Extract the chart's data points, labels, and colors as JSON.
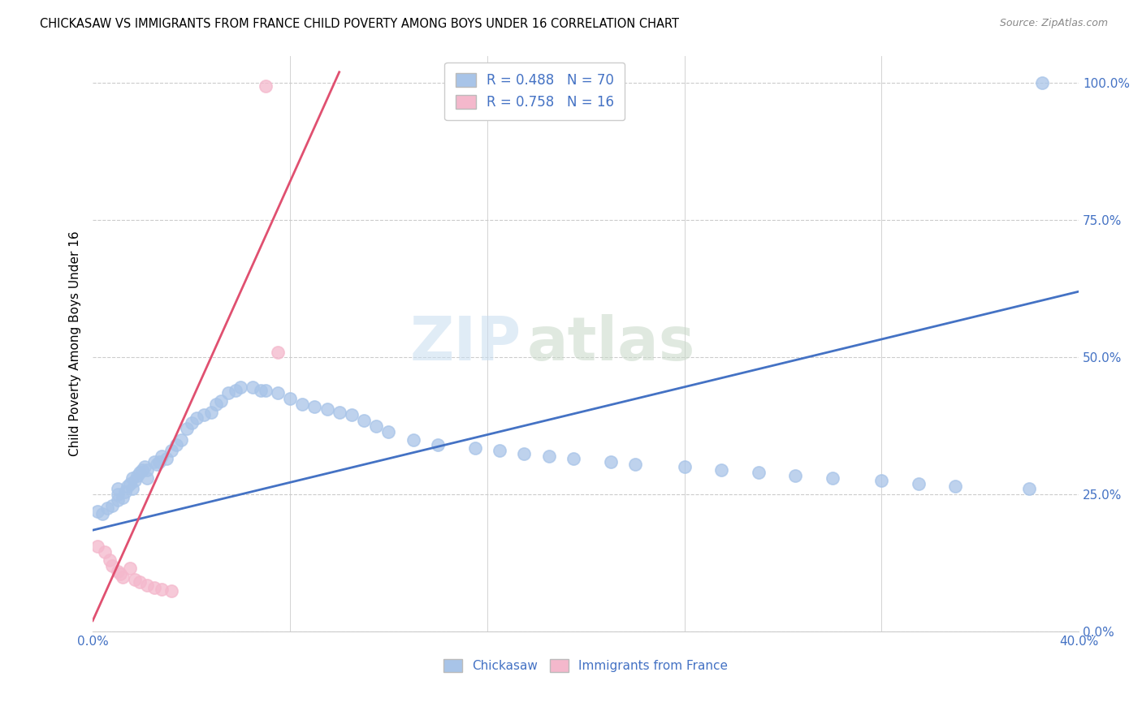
{
  "title": "CHICKASAW VS IMMIGRANTS FROM FRANCE CHILD POVERTY AMONG BOYS UNDER 16 CORRELATION CHART",
  "source": "Source: ZipAtlas.com",
  "ylabel": "Child Poverty Among Boys Under 16",
  "xlim": [
    0.0,
    0.4
  ],
  "ylim": [
    0.0,
    1.05
  ],
  "yticks": [
    0.0,
    0.25,
    0.5,
    0.75,
    1.0
  ],
  "ytick_labels": [
    "0.0%",
    "25.0%",
    "50.0%",
    "75.0%",
    "100.0%"
  ],
  "xtick_positions": [
    0.0,
    0.08,
    0.16,
    0.24,
    0.32,
    0.4
  ],
  "xtick_labels": [
    "0.0%",
    "",
    "",
    "",
    "",
    "40.0%"
  ],
  "watermark_zip": "ZIP",
  "watermark_atlas": "atlas",
  "scatter_blue_color": "#a8c4e8",
  "scatter_pink_color": "#f4b8cc",
  "line_blue_color": "#4472c4",
  "line_pink_color": "#e05070",
  "text_color": "#4472c4",
  "legend1_r1": "R = 0.488",
  "legend1_n1": "N = 70",
  "legend1_r2": "R = 0.758",
  "legend1_n2": "N = 16",
  "chickasaw_x": [
    0.002,
    0.004,
    0.006,
    0.008,
    0.01,
    0.01,
    0.01,
    0.012,
    0.013,
    0.014,
    0.015,
    0.016,
    0.016,
    0.017,
    0.018,
    0.019,
    0.02,
    0.021,
    0.022,
    0.022,
    0.025,
    0.026,
    0.027,
    0.028,
    0.03,
    0.032,
    0.034,
    0.036,
    0.038,
    0.04,
    0.042,
    0.045,
    0.048,
    0.05,
    0.052,
    0.055,
    0.058,
    0.06,
    0.065,
    0.068,
    0.07,
    0.075,
    0.08,
    0.085,
    0.09,
    0.095,
    0.1,
    0.105,
    0.11,
    0.115,
    0.12,
    0.13,
    0.14,
    0.155,
    0.165,
    0.175,
    0.185,
    0.195,
    0.21,
    0.22,
    0.24,
    0.255,
    0.27,
    0.285,
    0.3,
    0.32,
    0.335,
    0.35,
    0.38,
    0.385
  ],
  "chickasaw_y": [
    0.22,
    0.215,
    0.225,
    0.23,
    0.24,
    0.25,
    0.26,
    0.245,
    0.255,
    0.265,
    0.27,
    0.26,
    0.28,
    0.275,
    0.285,
    0.29,
    0.295,
    0.3,
    0.295,
    0.28,
    0.31,
    0.305,
    0.31,
    0.32,
    0.315,
    0.33,
    0.34,
    0.35,
    0.37,
    0.38,
    0.39,
    0.395,
    0.4,
    0.415,
    0.42,
    0.435,
    0.44,
    0.445,
    0.445,
    0.44,
    0.44,
    0.435,
    0.425,
    0.415,
    0.41,
    0.405,
    0.4,
    0.395,
    0.385,
    0.375,
    0.365,
    0.35,
    0.34,
    0.335,
    0.33,
    0.325,
    0.32,
    0.315,
    0.31,
    0.305,
    0.3,
    0.295,
    0.29,
    0.285,
    0.28,
    0.275,
    0.27,
    0.265,
    0.26,
    1.0
  ],
  "france_x": [
    0.002,
    0.005,
    0.007,
    0.008,
    0.01,
    0.011,
    0.012,
    0.015,
    0.017,
    0.019,
    0.022,
    0.025,
    0.028,
    0.032,
    0.07,
    0.075
  ],
  "france_y": [
    0.155,
    0.145,
    0.13,
    0.12,
    0.11,
    0.105,
    0.1,
    0.115,
    0.095,
    0.09,
    0.085,
    0.08,
    0.078,
    0.075,
    0.995,
    0.51
  ],
  "blue_line_x": [
    0.0,
    0.4
  ],
  "blue_line_y": [
    0.185,
    0.62
  ],
  "pink_line_x": [
    0.0,
    0.1
  ],
  "pink_line_y": [
    0.02,
    1.02
  ]
}
